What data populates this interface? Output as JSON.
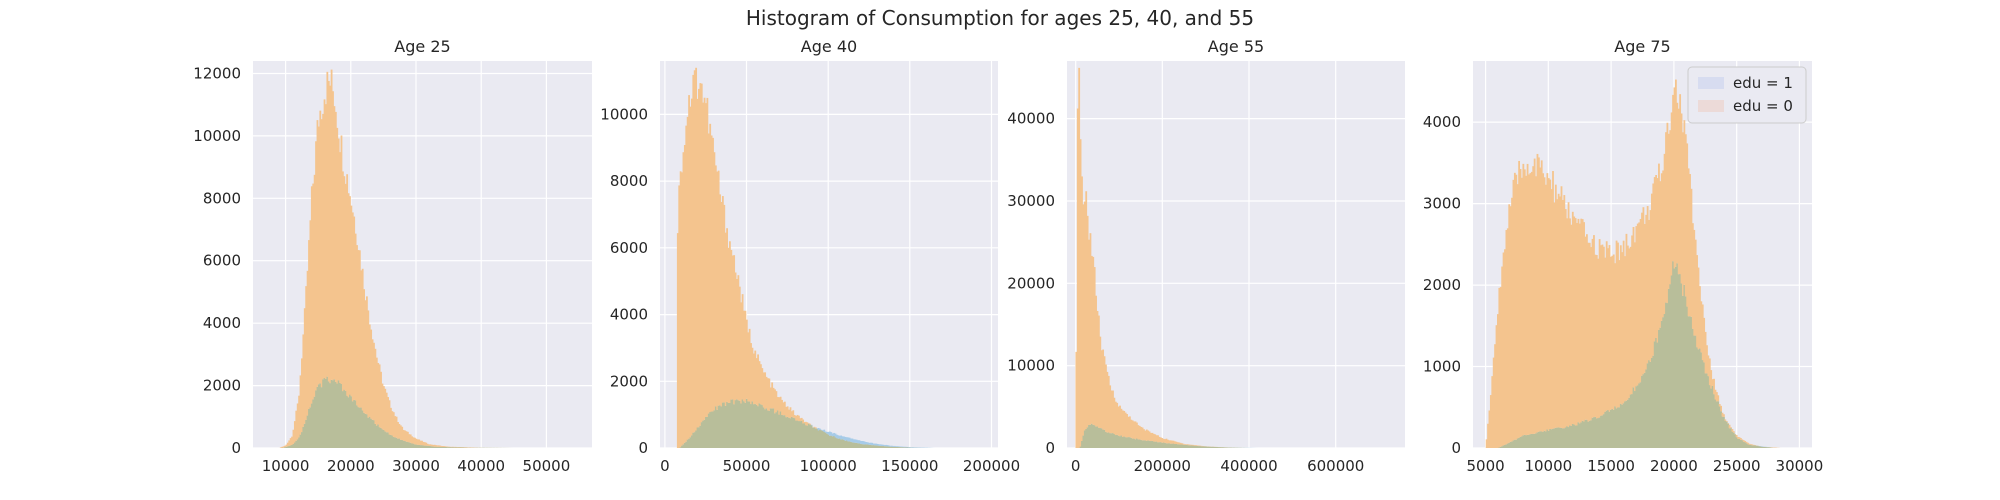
{
  "figure": {
    "suptitle": "Histogram of Consumption for ages 25, 40, and 55",
    "background": "#ffffff",
    "axes_facecolor": "#eaeaf2",
    "grid_color": "#ffffff",
    "series_colors": {
      "edu = 1": "#a6cbe8",
      "edu = 0": "#f4c48e",
      "overlap": "#b8be9a"
    }
  },
  "legend": {
    "placement": "upper right of fourth panel",
    "entries": [
      {
        "label": "edu = 1",
        "color": "#d7dcf0"
      },
      {
        "label": "edu = 0",
        "color": "#ecdad8"
      }
    ]
  },
  "chart_data": [
    {
      "type": "histogram",
      "title": "Age 25",
      "xlim": [
        5000,
        57000
      ],
      "ylim": [
        0,
        12400
      ],
      "xticks": [
        10000,
        20000,
        30000,
        40000,
        50000
      ],
      "yticks": [
        0,
        2000,
        4000,
        6000,
        8000,
        10000,
        12000
      ],
      "grid": true,
      "series": [
        {
          "name": "edu = 0",
          "curve": [
            [
              9000,
              0
            ],
            [
              10000,
              80
            ],
            [
              11000,
              400
            ],
            [
              12000,
              1600
            ],
            [
              13000,
              4500
            ],
            [
              14000,
              8000
            ],
            [
              15000,
              10500
            ],
            [
              16000,
              11500
            ],
            [
              16800,
              11750
            ],
            [
              17500,
              11300
            ],
            [
              18500,
              9700
            ],
            [
              20000,
              8000
            ],
            [
              21000,
              6800
            ],
            [
              22000,
              5300
            ],
            [
              23000,
              4000
            ],
            [
              24000,
              2900
            ],
            [
              25000,
              2000
            ],
            [
              26000,
              1400
            ],
            [
              27000,
              950
            ],
            [
              28000,
              600
            ],
            [
              30000,
              300
            ],
            [
              32000,
              120
            ],
            [
              35000,
              40
            ],
            [
              40000,
              8
            ],
            [
              45000,
              0
            ]
          ]
        },
        {
          "name": "edu = 1",
          "curve": [
            [
              9500,
              0
            ],
            [
              11000,
              100
            ],
            [
              12000,
              300
            ],
            [
              13000,
              800
            ],
            [
              14000,
              1500
            ],
            [
              15000,
              1950
            ],
            [
              16000,
              2150
            ],
            [
              17000,
              2200
            ],
            [
              18000,
              2080
            ],
            [
              19000,
              1850
            ],
            [
              20000,
              1600
            ],
            [
              22000,
              1150
            ],
            [
              24000,
              750
            ],
            [
              26000,
              430
            ],
            [
              28000,
              230
            ],
            [
              30000,
              110
            ],
            [
              33000,
              40
            ],
            [
              38000,
              10
            ],
            [
              45000,
              0
            ]
          ]
        }
      ]
    },
    {
      "type": "histogram",
      "title": "Age 40",
      "xlim": [
        -3000,
        204000
      ],
      "ylim": [
        0,
        11600
      ],
      "xticks": [
        0,
        50000,
        100000,
        150000,
        200000
      ],
      "yticks": [
        0,
        2000,
        4000,
        6000,
        8000,
        10000
      ],
      "grid": true,
      "series": [
        {
          "name": "edu = 0",
          "curve": [
            [
              7000,
              0
            ],
            [
              8000,
              8200
            ],
            [
              9500,
              8000
            ],
            [
              11000,
              9000
            ],
            [
              14000,
              10200
            ],
            [
              18000,
              11000
            ],
            [
              21000,
              11100
            ],
            [
              25000,
              10300
            ],
            [
              30000,
              8800
            ],
            [
              35000,
              7300
            ],
            [
              40000,
              6100
            ],
            [
              45000,
              5000
            ],
            [
              50000,
              3700
            ],
            [
              55000,
              2900
            ],
            [
              60000,
              2300
            ],
            [
              70000,
              1500
            ],
            [
              80000,
              1000
            ],
            [
              90000,
              650
            ],
            [
              100000,
              400
            ],
            [
              110000,
              230
            ],
            [
              120000,
              120
            ],
            [
              135000,
              50
            ],
            [
              150000,
              10
            ],
            [
              160000,
              0
            ]
          ]
        },
        {
          "name": "edu = 1",
          "curve": [
            [
              9000,
              0
            ],
            [
              15000,
              300
            ],
            [
              20000,
              600
            ],
            [
              25000,
              900
            ],
            [
              30000,
              1150
            ],
            [
              35000,
              1300
            ],
            [
              40000,
              1370
            ],
            [
              45000,
              1420
            ],
            [
              50000,
              1400
            ],
            [
              60000,
              1250
            ],
            [
              70000,
              1050
            ],
            [
              80000,
              850
            ],
            [
              90000,
              650
            ],
            [
              100000,
              480
            ],
            [
              110000,
              330
            ],
            [
              120000,
              210
            ],
            [
              130000,
              120
            ],
            [
              140000,
              60
            ],
            [
              150000,
              25
            ],
            [
              165000,
              0
            ]
          ]
        }
      ]
    },
    {
      "type": "histogram",
      "title": "Age 55",
      "xlim": [
        -20000,
        760000
      ],
      "ylim": [
        0,
        47000
      ],
      "xticks": [
        0,
        200000,
        400000,
        600000
      ],
      "yticks": [
        0,
        10000,
        20000,
        30000,
        40000
      ],
      "grid": true,
      "series": [
        {
          "name": "edu = 0",
          "curve": [
            [
              0,
              0
            ],
            [
              2000,
              20000
            ],
            [
              5000,
              45000
            ],
            [
              8000,
              44000
            ],
            [
              11000,
              36000
            ],
            [
              15000,
              31500
            ],
            [
              20000,
              31000
            ],
            [
              30000,
              27000
            ],
            [
              40000,
              23000
            ],
            [
              50000,
              17000
            ],
            [
              60000,
              12000
            ],
            [
              80000,
              7500
            ],
            [
              100000,
              5000
            ],
            [
              150000,
              2500
            ],
            [
              200000,
              1200
            ],
            [
              250000,
              500
            ],
            [
              300000,
              200
            ],
            [
              350000,
              60
            ],
            [
              400000,
              0
            ]
          ]
        },
        {
          "name": "edu = 1",
          "curve": [
            [
              10000,
              0
            ],
            [
              20000,
              2000
            ],
            [
              35000,
              3000
            ],
            [
              50000,
              2600
            ],
            [
              70000,
              2000
            ],
            [
              100000,
              1500
            ],
            [
              150000,
              1000
            ],
            [
              200000,
              650
            ],
            [
              250000,
              380
            ],
            [
              300000,
              180
            ],
            [
              350000,
              60
            ],
            [
              420000,
              0
            ]
          ]
        }
      ]
    },
    {
      "type": "histogram",
      "title": "Age 75",
      "xlim": [
        4000,
        31000
      ],
      "ylim": [
        0,
        4750
      ],
      "xticks": [
        5000,
        10000,
        15000,
        20000,
        25000,
        30000
      ],
      "yticks": [
        0,
        1000,
        2000,
        3000,
        4000
      ],
      "grid": true,
      "series": [
        {
          "name": "edu = 0",
          "curve": [
            [
              5000,
              0
            ],
            [
              5500,
              800
            ],
            [
              6000,
              1800
            ],
            [
              6500,
              2500
            ],
            [
              7000,
              3000
            ],
            [
              7500,
              3300
            ],
            [
              8000,
              3450
            ],
            [
              8500,
              3500
            ],
            [
              9000,
              3450
            ],
            [
              10000,
              3300
            ],
            [
              11000,
              3050
            ],
            [
              12000,
              2800
            ],
            [
              13000,
              2600
            ],
            [
              14000,
              2450
            ],
            [
              15000,
              2380
            ],
            [
              16000,
              2450
            ],
            [
              17000,
              2700
            ],
            [
              18000,
              2950
            ],
            [
              19000,
              3400
            ],
            [
              19500,
              3900
            ],
            [
              20000,
              4500
            ],
            [
              20500,
              4200
            ],
            [
              21000,
              3700
            ],
            [
              21500,
              2900
            ],
            [
              22000,
              2100
            ],
            [
              22500,
              1400
            ],
            [
              23000,
              900
            ],
            [
              24000,
              380
            ],
            [
              25000,
              150
            ],
            [
              26000,
              50
            ],
            [
              27000,
              15
            ],
            [
              28500,
              0
            ]
          ]
        },
        {
          "name": "edu = 1",
          "curve": [
            [
              6000,
              0
            ],
            [
              8000,
              150
            ],
            [
              10000,
              220
            ],
            [
              12000,
              280
            ],
            [
              14000,
              380
            ],
            [
              16000,
              550
            ],
            [
              17000,
              750
            ],
            [
              18000,
              1050
            ],
            [
              19000,
              1500
            ],
            [
              20000,
              2250
            ],
            [
              20500,
              2100
            ],
            [
              21000,
              1800
            ],
            [
              22000,
              1200
            ],
            [
              23000,
              750
            ],
            [
              24000,
              350
            ],
            [
              25000,
              130
            ],
            [
              26000,
              40
            ],
            [
              28000,
              0
            ]
          ]
        }
      ]
    }
  ]
}
